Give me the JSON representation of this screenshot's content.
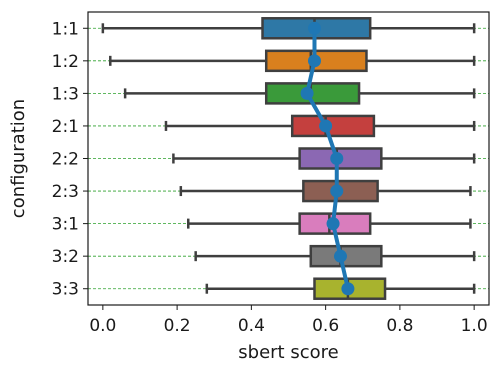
{
  "chart_data": {
    "type": "box",
    "title": "",
    "xlabel": "sbert score",
    "ylabel": "configuration",
    "xlim": [
      -0.04,
      1.04
    ],
    "xticks": [
      "0.0",
      "0.2",
      "0.4",
      "0.6",
      "0.8",
      "1.0"
    ],
    "xtick_values": [
      0.0,
      0.2,
      0.4,
      0.6,
      0.8,
      1.0
    ],
    "categories": [
      "1:1",
      "1:2",
      "1:3",
      "2:1",
      "2:2",
      "2:3",
      "3:1",
      "3:2",
      "3:3"
    ],
    "boxes": [
      {
        "label": "1:1",
        "whisker_low": 0.0,
        "q1": 0.43,
        "median": 0.57,
        "q3": 0.72,
        "whisker_high": 1.0,
        "color": "#2e78a6"
      },
      {
        "label": "1:2",
        "whisker_low": 0.02,
        "q1": 0.44,
        "median": 0.56,
        "q3": 0.71,
        "whisker_high": 1.0,
        "color": "#d9801e"
      },
      {
        "label": "1:3",
        "whisker_low": 0.06,
        "q1": 0.44,
        "median": 0.56,
        "q3": 0.69,
        "whisker_high": 1.0,
        "color": "#3a9a3a"
      },
      {
        "label": "2:1",
        "whisker_low": 0.17,
        "q1": 0.51,
        "median": 0.6,
        "q3": 0.73,
        "whisker_high": 1.0,
        "color": "#c4403e"
      },
      {
        "label": "2:2",
        "whisker_low": 0.19,
        "q1": 0.53,
        "median": 0.63,
        "q3": 0.75,
        "whisker_high": 1.0,
        "color": "#8b68b3"
      },
      {
        "label": "2:3",
        "whisker_low": 0.21,
        "q1": 0.54,
        "median": 0.63,
        "q3": 0.74,
        "whisker_high": 0.99,
        "color": "#8c5f53"
      },
      {
        "label": "3:1",
        "whisker_low": 0.23,
        "q1": 0.53,
        "median": 0.61,
        "q3": 0.72,
        "whisker_high": 0.99,
        "color": "#d97dbd"
      },
      {
        "label": "3:2",
        "whisker_low": 0.25,
        "q1": 0.56,
        "median": 0.64,
        "q3": 0.75,
        "whisker_high": 1.0,
        "color": "#7a7a7a"
      },
      {
        "label": "3:3",
        "whisker_low": 0.28,
        "q1": 0.57,
        "median": 0.66,
        "q3": 0.76,
        "whisker_high": 1.0,
        "color": "#a8b32e"
      }
    ],
    "mean_line": {
      "values": [
        0.57,
        0.57,
        0.55,
        0.6,
        0.63,
        0.63,
        0.62,
        0.64,
        0.66
      ],
      "color": "#1f77b4"
    },
    "grid": {
      "horizontal_dashed": true,
      "color": "#2ca02c"
    }
  }
}
